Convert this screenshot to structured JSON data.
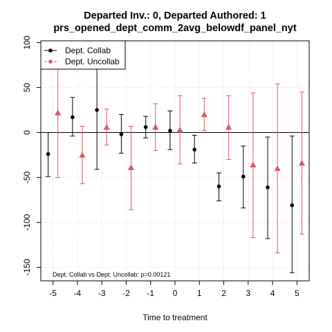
{
  "chart_data": {
    "type": "scatter",
    "title_line1": "Departed Inv.: 0, Departed Authored: 1",
    "title_line2": "prs_opened_dept_comm_2avg_belowdf_panel_nyt",
    "xlabel": "Time to treatment",
    "ylabel": "",
    "x_ticks": [
      -5,
      -4,
      -3,
      -2,
      -1,
      0,
      1,
      2,
      3,
      4,
      5
    ],
    "y_ticks": [
      -150,
      -100,
      -50,
      0,
      50,
      100
    ],
    "xlim": [
      -5.5,
      5.5
    ],
    "ylim": [
      -165,
      102
    ],
    "grid": true,
    "reference_line_y": 0,
    "legend_position": "top-left",
    "annotation": "Dept. Collab vs Dept. Uncollab: p=0.00121",
    "series": [
      {
        "name": "Dept. Collab",
        "color": "#000000",
        "marker": "circle",
        "offset": -0.2,
        "x": [
          -5,
          -4,
          -3,
          -2,
          -1,
          0,
          1,
          2,
          3,
          4,
          5
        ],
        "y": [
          -24,
          17,
          25,
          -2,
          6,
          2,
          -19,
          -60,
          -49,
          -61,
          -81
        ],
        "lower": [
          -49,
          -4,
          -41,
          -23,
          -6,
          -19,
          -34,
          -76,
          -84,
          -118,
          -156
        ],
        "upper": [
          0,
          39,
          93,
          20,
          18,
          24,
          -3,
          -45,
          -15,
          -5,
          -4
        ]
      },
      {
        "name": "Dept. Uncollab",
        "color": "#DF536B",
        "marker": "triangle",
        "offset": 0.2,
        "x": [
          -5,
          -4,
          -3,
          -2,
          -1,
          0,
          1,
          2,
          3,
          4,
          5
        ],
        "y": [
          22,
          -25,
          6,
          -39,
          6,
          3,
          20,
          6,
          -36,
          -40,
          -34
        ],
        "lower": [
          -50,
          -57,
          -14,
          -86,
          -20,
          -35,
          2,
          -30,
          -117,
          -134,
          -113
        ],
        "upper": [
          95,
          7,
          26,
          7,
          32,
          41,
          38,
          41,
          44,
          54,
          45
        ]
      }
    ]
  }
}
